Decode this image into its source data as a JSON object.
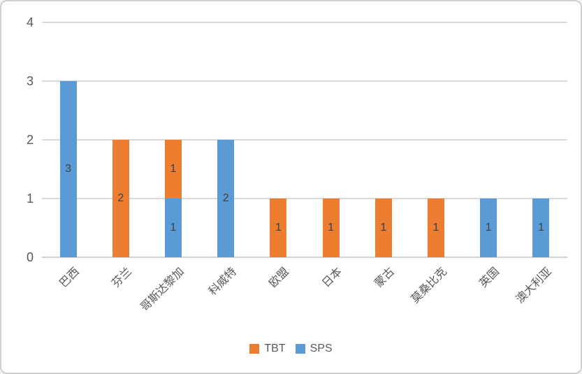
{
  "chart_data": {
    "type": "bar",
    "stacked": true,
    "title": "",
    "xlabel": "",
    "ylabel": "",
    "categories": [
      "巴西",
      "芬兰",
      "哥斯达黎加",
      "科威特",
      "欧盟",
      "日本",
      "蒙古",
      "莫桑比克",
      "英国",
      "澳大利亚"
    ],
    "series": [
      {
        "name": "TBT",
        "color": "#ED7D31",
        "values": [
          0,
          2,
          1,
          0,
          1,
          1,
          1,
          1,
          0,
          0
        ]
      },
      {
        "name": "SPS",
        "color": "#5B9BD5",
        "values": [
          3,
          0,
          1,
          2,
          0,
          0,
          0,
          0,
          1,
          1
        ]
      }
    ],
    "stack_order_bottom_to_top": [
      "SPS",
      "TBT"
    ],
    "data_labels": "inside-center",
    "y_ticks": [
      "0",
      "1",
      "2",
      "3",
      "4"
    ],
    "ylim": [
      0,
      4
    ],
    "grid": true,
    "legend_position": "bottom",
    "legend": [
      {
        "label": "TBT",
        "color": "#ED7D31"
      },
      {
        "label": "SPS",
        "color": "#5B9BD5"
      }
    ]
  },
  "style": {
    "background": "#FFFFFF",
    "border_color": "#CFCFCF",
    "gridline_color": "#D9D9D9",
    "axis_text_color": "#595959",
    "data_label_color": "#404040"
  }
}
